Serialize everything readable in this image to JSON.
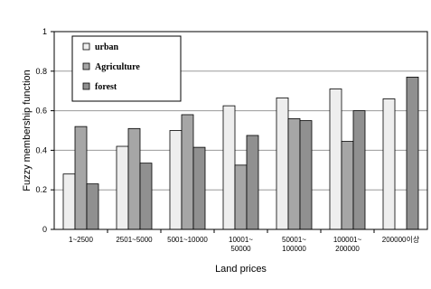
{
  "chart_data": {
    "type": "bar",
    "title": "",
    "xlabel": "Land prices",
    "ylabel": "Fuzzy membership function",
    "ylim": [
      0,
      1
    ],
    "yticks": [
      "0",
      "0.2",
      "0.4",
      "0.6",
      "0.8",
      "1"
    ],
    "ytick_values": [
      0,
      0.2,
      0.4,
      0.6,
      0.8,
      1
    ],
    "grid": true,
    "legend_position": "top-left",
    "categories": [
      [
        "1~2500"
      ],
      [
        "2501~5000"
      ],
      [
        "5001~10000"
      ],
      [
        "10001~",
        "50000"
      ],
      [
        "50001~",
        "100000"
      ],
      [
        "100001~",
        "200000"
      ],
      [
        "200000이상"
      ]
    ],
    "series": [
      {
        "name": "urban",
        "color": "#eeeeee",
        "values": [
          0.28,
          0.42,
          0.5,
          0.625,
          0.665,
          0.71,
          0.66
        ]
      },
      {
        "name": "Agriculture",
        "color": "#a6a6a6",
        "values": [
          0.52,
          0.51,
          0.58,
          0.325,
          0.56,
          0.445,
          0
        ]
      },
      {
        "name": "forest",
        "color": "#909090",
        "values": [
          0.23,
          0.335,
          0.415,
          0.475,
          0.55,
          0.6,
          0.77
        ]
      }
    ]
  }
}
